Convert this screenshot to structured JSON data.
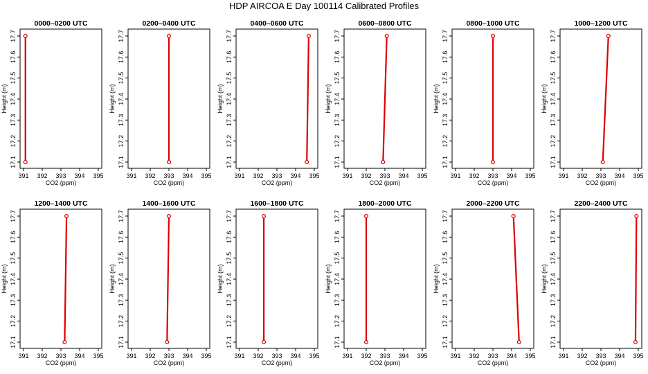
{
  "title": "HDP AIRCOA E  Day 100114  Calibrated Profiles",
  "colors": {
    "series": "#dd0000",
    "axis": "#000000",
    "background": "#ffffff"
  },
  "chart_data": [
    {
      "type": "line",
      "title": "0000–0200 UTC",
      "xlabel": "CO2 (ppm)",
      "ylabel": "Height (m)",
      "xlim": [
        391,
        395
      ],
      "ylim": [
        17.1,
        17.7
      ],
      "xticks": [
        391,
        392,
        393,
        394,
        395
      ],
      "yticks": [
        17.1,
        17.2,
        17.3,
        17.4,
        17.5,
        17.6,
        17.7
      ],
      "grid": false,
      "x": [
        391.1,
        391.1
      ],
      "y": [
        17.1,
        17.7
      ]
    },
    {
      "type": "line",
      "title": "0200–0400 UTC",
      "xlabel": "CO2 (ppm)",
      "ylabel": "Height (m)",
      "xlim": [
        391,
        395
      ],
      "ylim": [
        17.1,
        17.7
      ],
      "xticks": [
        391,
        392,
        393,
        394,
        395
      ],
      "yticks": [
        17.1,
        17.2,
        17.3,
        17.4,
        17.5,
        17.6,
        17.7
      ],
      "grid": false,
      "x": [
        393.0,
        393.0
      ],
      "y": [
        17.1,
        17.7
      ]
    },
    {
      "type": "line",
      "title": "0400–0600 UTC",
      "xlabel": "CO2 (ppm)",
      "ylabel": "Height (m)",
      "xlim": [
        391,
        395
      ],
      "ylim": [
        17.1,
        17.7
      ],
      "xticks": [
        391,
        392,
        393,
        394,
        395
      ],
      "yticks": [
        17.1,
        17.2,
        17.3,
        17.4,
        17.5,
        17.6,
        17.7
      ],
      "grid": false,
      "x": [
        394.6,
        394.7
      ],
      "y": [
        17.1,
        17.7
      ]
    },
    {
      "type": "line",
      "title": "0600–0800 UTC",
      "xlabel": "CO2 (ppm)",
      "ylabel": "Height (m)",
      "xlim": [
        391,
        395
      ],
      "ylim": [
        17.1,
        17.7
      ],
      "xticks": [
        391,
        392,
        393,
        394,
        395
      ],
      "yticks": [
        17.1,
        17.2,
        17.3,
        17.4,
        17.5,
        17.6,
        17.7
      ],
      "grid": false,
      "x": [
        392.9,
        393.1
      ],
      "y": [
        17.1,
        17.7
      ]
    },
    {
      "type": "line",
      "title": "0800–1000 UTC",
      "xlabel": "CO2 (ppm)",
      "ylabel": "Height (m)",
      "xlim": [
        391,
        395
      ],
      "ylim": [
        17.1,
        17.7
      ],
      "xticks": [
        391,
        392,
        393,
        394,
        395
      ],
      "yticks": [
        17.1,
        17.2,
        17.3,
        17.4,
        17.5,
        17.6,
        17.7
      ],
      "grid": false,
      "x": [
        393.0,
        393.0
      ],
      "y": [
        17.1,
        17.7
      ]
    },
    {
      "type": "line",
      "title": "1000–1200 UTC",
      "xlabel": "CO2 (ppm)",
      "ylabel": "Height (m)",
      "xlim": [
        391,
        395
      ],
      "ylim": [
        17.1,
        17.7
      ],
      "xticks": [
        391,
        392,
        393,
        394,
        395
      ],
      "yticks": [
        17.1,
        17.2,
        17.3,
        17.4,
        17.5,
        17.6,
        17.7
      ],
      "grid": false,
      "x": [
        393.1,
        393.4
      ],
      "y": [
        17.1,
        17.7
      ]
    },
    {
      "type": "line",
      "title": "1200–1400 UTC",
      "xlabel": "CO2 (ppm)",
      "ylabel": "Height (m)",
      "xlim": [
        391,
        395
      ],
      "ylim": [
        17.1,
        17.7
      ],
      "xticks": [
        391,
        392,
        393,
        394,
        395
      ],
      "yticks": [
        17.1,
        17.2,
        17.3,
        17.4,
        17.5,
        17.6,
        17.7
      ],
      "grid": false,
      "x": [
        393.2,
        393.3
      ],
      "y": [
        17.1,
        17.7
      ]
    },
    {
      "type": "line",
      "title": "1400–1600 UTC",
      "xlabel": "CO2 (ppm)",
      "ylabel": "Height (m)",
      "xlim": [
        391,
        395
      ],
      "ylim": [
        17.1,
        17.7
      ],
      "xticks": [
        391,
        392,
        393,
        394,
        395
      ],
      "yticks": [
        17.1,
        17.2,
        17.3,
        17.4,
        17.5,
        17.6,
        17.7
      ],
      "grid": false,
      "x": [
        392.9,
        393.0
      ],
      "y": [
        17.1,
        17.7
      ]
    },
    {
      "type": "line",
      "title": "1600–1800 UTC",
      "xlabel": "CO2 (ppm)",
      "ylabel": "Height (m)",
      "xlim": [
        391,
        395
      ],
      "ylim": [
        17.1,
        17.7
      ],
      "xticks": [
        391,
        392,
        393,
        394,
        395
      ],
      "yticks": [
        17.1,
        17.2,
        17.3,
        17.4,
        17.5,
        17.6,
        17.7
      ],
      "grid": false,
      "x": [
        392.3,
        392.3
      ],
      "y": [
        17.1,
        17.7
      ]
    },
    {
      "type": "line",
      "title": "1800–2000 UTC",
      "xlabel": "CO2 (ppm)",
      "ylabel": "Height (m)",
      "xlim": [
        391,
        395
      ],
      "ylim": [
        17.1,
        17.7
      ],
      "xticks": [
        391,
        392,
        393,
        394,
        395
      ],
      "yticks": [
        17.1,
        17.2,
        17.3,
        17.4,
        17.5,
        17.6,
        17.7
      ],
      "grid": false,
      "x": [
        392.0,
        392.0
      ],
      "y": [
        17.1,
        17.7
      ]
    },
    {
      "type": "line",
      "title": "2000–2200 UTC",
      "xlabel": "CO2 (ppm)",
      "ylabel": "Height (m)",
      "xlim": [
        391,
        395
      ],
      "ylim": [
        17.1,
        17.7
      ],
      "xticks": [
        391,
        392,
        393,
        394,
        395
      ],
      "yticks": [
        17.1,
        17.2,
        17.3,
        17.4,
        17.5,
        17.6,
        17.7
      ],
      "grid": false,
      "x": [
        394.4,
        394.1
      ],
      "y": [
        17.1,
        17.7
      ]
    },
    {
      "type": "line",
      "title": "2200–2400 UTC",
      "xlabel": "CO2 (ppm)",
      "ylabel": "Height (m)",
      "xlim": [
        391,
        395
      ],
      "ylim": [
        17.1,
        17.7
      ],
      "xticks": [
        391,
        392,
        393,
        394,
        395
      ],
      "yticks": [
        17.1,
        17.2,
        17.3,
        17.4,
        17.5,
        17.6,
        17.7
      ],
      "grid": false,
      "x": [
        394.85,
        394.9
      ],
      "y": [
        17.1,
        17.7
      ]
    }
  ]
}
